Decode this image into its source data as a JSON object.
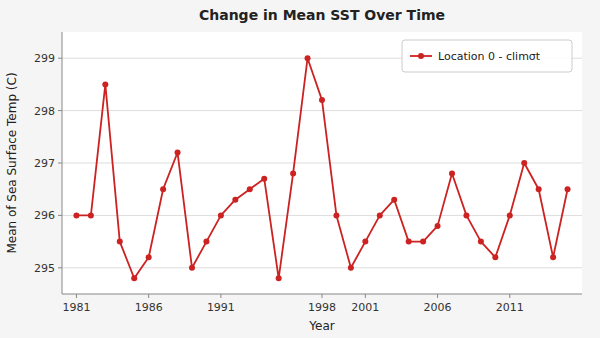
{
  "chart_data": {
    "type": "line",
    "title": "Change in Mean SST Over Time",
    "x_label": "Year",
    "y_label": "Mean of Sea Surface Temp (C)",
    "x": [
      1981,
      1982,
      1983,
      1984,
      1985,
      1986,
      1987,
      1988,
      1989,
      1990,
      1991,
      1992,
      1993,
      1994,
      1995,
      1996,
      1997,
      1998,
      1999,
      2000,
      2001,
      2002,
      2003,
      2004,
      2005,
      2006,
      2007,
      2008,
      2009,
      2010,
      2011,
      2012,
      2013,
      2014,
      2015
    ],
    "series": [
      {
        "name": "Location 0 - climσt",
        "color": "#cc2222",
        "marker": "circle",
        "values": [
          296.0,
          296.0,
          298.5,
          295.5,
          294.8,
          295.2,
          296.5,
          297.2,
          295.0,
          295.5,
          296.0,
          296.3,
          296.5,
          296.7,
          294.8,
          296.8,
          299.0,
          298.2,
          296.0,
          295.0,
          295.5,
          296.0,
          296.3,
          295.5,
          295.5,
          295.8,
          296.8,
          296.0,
          295.5,
          295.2,
          296.0,
          297.0,
          296.5,
          295.2,
          296.5
        ]
      }
    ],
    "xlim": [
      1980,
      2016
    ],
    "ylim": [
      294.5,
      299.5
    ],
    "xticks": [
      1981,
      1986,
      1991,
      1998,
      2001,
      2006,
      2011
    ],
    "yticks": [
      295,
      296,
      297,
      298,
      299
    ],
    "grid": "y",
    "legend": "top-right"
  }
}
